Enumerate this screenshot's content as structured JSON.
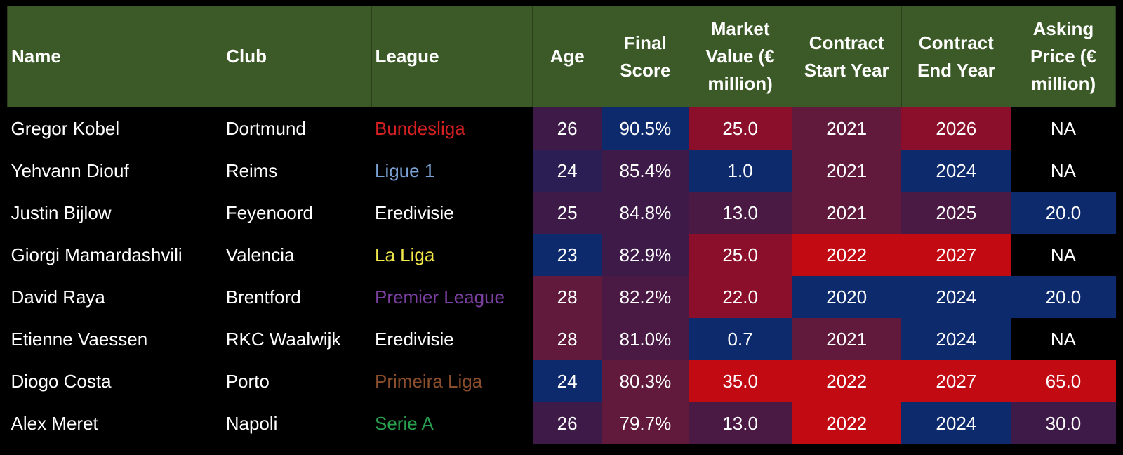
{
  "headers": [
    "Name",
    "Club",
    "League",
    "Age",
    "Final Score",
    "Market Value (€ million)",
    "Contract Start Year",
    "Contract End Year",
    "Asking Price (€ million)"
  ],
  "rows": [
    {
      "name": "Gregor Kobel",
      "club": "Dortmund",
      "league": "Bundesliga",
      "league_color": "#d42020",
      "age": "26",
      "score": "90.5%",
      "mv": "25.0",
      "start": "2021",
      "end": "2026",
      "ask": "NA",
      "bg": {
        "age": "#3d1a48",
        "score": "#0d2a6c",
        "mv": "#8b0f2a",
        "start": "#621a3c",
        "end": "#8b0f2a",
        "ask": "#000000"
      }
    },
    {
      "name": "Yehvann Diouf",
      "club": "Reims",
      "league": "Ligue 1",
      "league_color": "#7ba2d4",
      "age": "24",
      "score": "85.4%",
      "mv": "1.0",
      "start": "2021",
      "end": "2024",
      "ask": "NA",
      "bg": {
        "age": "#2a1e55",
        "score": "#3d1a48",
        "mv": "#0d2a6c",
        "start": "#621a3c",
        "end": "#0d2a6c",
        "ask": "#000000"
      }
    },
    {
      "name": "Justin Bijlow",
      "club": "Feyenoord",
      "league": "Eredivisie",
      "league_color": "#ffffff",
      "age": "25",
      "score": "84.8%",
      "mv": "13.0",
      "start": "2021",
      "end": "2025",
      "ask": "20.0",
      "bg": {
        "age": "#3d1a48",
        "score": "#3d1a48",
        "mv": "#4a1a45",
        "start": "#621a3c",
        "end": "#4a1a45",
        "ask": "#0d2a6c"
      }
    },
    {
      "name": "Giorgi Mamardashvili",
      "club": "Valencia",
      "league": "La Liga",
      "league_color": "#f2e84a",
      "age": "23",
      "score": "82.9%",
      "mv": "25.0",
      "start": "2022",
      "end": "2027",
      "ask": "NA",
      "bg": {
        "age": "#0d2a6c",
        "score": "#3d1a48",
        "mv": "#8b0f2a",
        "start": "#c20a12",
        "end": "#c20a12",
        "ask": "#000000"
      }
    },
    {
      "name": "David Raya",
      "club": "Brentford",
      "league": "Premier League",
      "league_color": "#7a3fa0",
      "age": "28",
      "score": "82.2%",
      "mv": "22.0",
      "start": "2020",
      "end": "2024",
      "ask": "20.0",
      "bg": {
        "age": "#621a3c",
        "score": "#4a1a45",
        "mv": "#8b0f2a",
        "start": "#0d2a6c",
        "end": "#0d2a6c",
        "ask": "#0d2a6c"
      }
    },
    {
      "name": "Etienne Vaessen",
      "club": "RKC Waalwijk",
      "league": "Eredivisie",
      "league_color": "#ffffff",
      "age": "28",
      "score": "81.0%",
      "mv": "0.7",
      "start": "2021",
      "end": "2024",
      "ask": "NA",
      "bg": {
        "age": "#621a3c",
        "score": "#4a1a45",
        "mv": "#0d2a6c",
        "start": "#621a3c",
        "end": "#0d2a6c",
        "ask": "#000000"
      }
    },
    {
      "name": "Diogo Costa",
      "club": "Porto",
      "league": "Primeira Liga",
      "league_color": "#8a4e2c",
      "age": "24",
      "score": "80.3%",
      "mv": "35.0",
      "start": "2022",
      "end": "2027",
      "ask": "65.0",
      "bg": {
        "age": "#0d2a6c",
        "score": "#621a3c",
        "mv": "#c20a12",
        "start": "#c20a12",
        "end": "#c20a12",
        "ask": "#c20a12"
      }
    },
    {
      "name": "Alex Meret",
      "club": "Napoli",
      "league": "Serie A",
      "league_color": "#27a04f",
      "age": "26",
      "score": "79.7%",
      "mv": "13.0",
      "start": "2022",
      "end": "2024",
      "ask": "30.0",
      "bg": {
        "age": "#3d1a48",
        "score": "#621a3c",
        "mv": "#4a1a45",
        "start": "#c20a12",
        "end": "#0d2a6c",
        "ask": "#3d1a48"
      }
    }
  ]
}
